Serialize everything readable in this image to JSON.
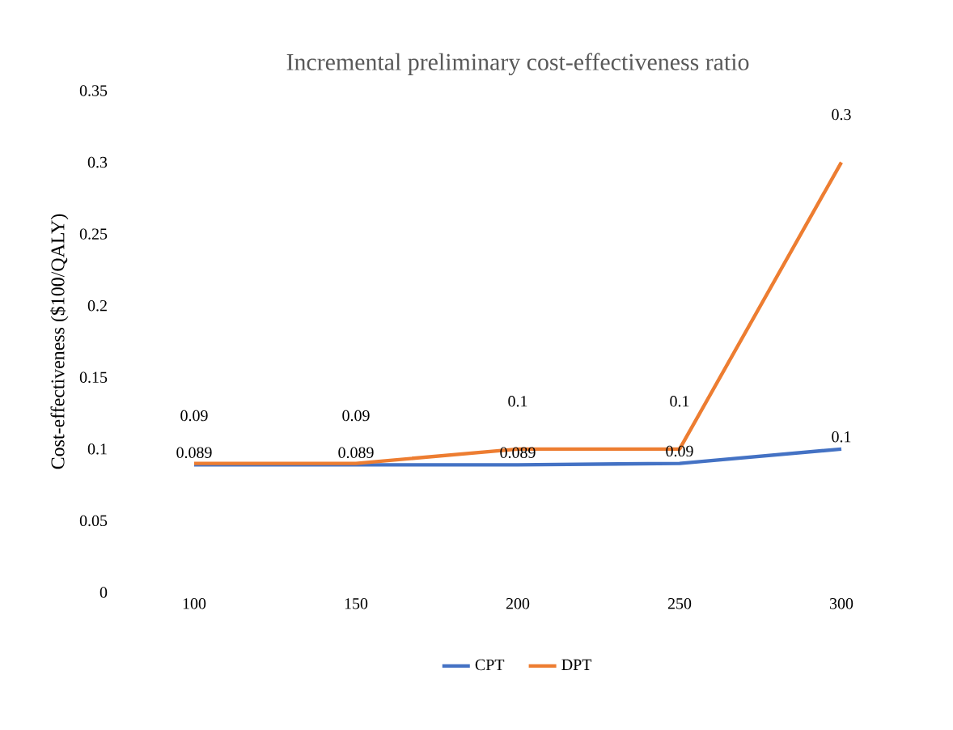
{
  "chart_data": {
    "type": "line",
    "title": "Incremental preliminary cost-effectiveness ratio",
    "ylabel": "Cost-effectiveness ($100/QALY)",
    "categories": [
      "100",
      "150",
      "200",
      "250",
      "300"
    ],
    "series": [
      {
        "name": "CPT",
        "color": "#4472c4",
        "values": [
          0.089,
          0.089,
          0.089,
          0.09,
          0.1
        ]
      },
      {
        "name": "DPT",
        "color": "#ed7d31",
        "values": [
          0.09,
          0.09,
          0.1,
          0.1,
          0.3
        ]
      }
    ],
    "ylim": [
      0,
      0.35
    ],
    "yticks": [
      0,
      0.05,
      0.1,
      0.15,
      0.2,
      0.25,
      0.3,
      0.35
    ],
    "data_labels": true,
    "legend": "bottom",
    "grid": false,
    "marker": "none",
    "line_style": "solid"
  }
}
